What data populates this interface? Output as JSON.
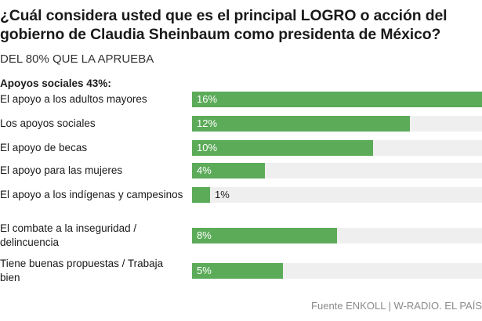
{
  "title_lines": [
    "¿Cuál considera usted que es el principal LOGRO o acción del",
    "gobierno de Claudia Sheinbaum como presidenta de México?"
  ],
  "subtitle": "DEL 80% QUE LA APRUEBA",
  "group_label": "Apoyos sociales 43%:",
  "source": "Fuente ENKOLL | W-RADIO. EL PAÍS",
  "colors": {
    "bar": "#5cab59",
    "track": "#efefef",
    "text": "#1a1a1a",
    "source": "#8a8a8a"
  },
  "chart_data": {
    "type": "bar",
    "orientation": "horizontal",
    "title": "¿Cuál considera usted que es el principal LOGRO o acción del gobierno de Claudia Sheinbaum como presidenta de México?",
    "subtitle": "DEL 80% QUE LA APRUEBA",
    "categories": [
      "El apoyo a los adultos mayores",
      "Los apoyos sociales",
      "El apoyo de becas",
      "El apoyo para las mujeres",
      "El apoyo a los indígenas y campesinos",
      "El combate a la inseguridad / delincuencia",
      "Tiene buenas propuestas / Trabaja bien"
    ],
    "category_lines": [
      [
        "El apoyo a los adultos mayores"
      ],
      [
        "Los apoyos sociales"
      ],
      [
        "El apoyo de becas"
      ],
      [
        "El apoyo para las mujeres"
      ],
      [
        "El apoyo a los indígenas y campesinos"
      ],
      [
        "El combate a la inseguridad /",
        "delincuencia"
      ],
      [
        "Tiene buenas propuestas / Trabaja",
        "bien"
      ]
    ],
    "values": [
      16,
      12,
      10,
      4,
      1,
      8,
      5
    ],
    "labels": [
      "16%",
      "12%",
      "10%",
      "4%",
      "1%",
      "8%",
      "5%"
    ],
    "unit": "%",
    "xlim": [
      0,
      16
    ],
    "grid": false
  }
}
